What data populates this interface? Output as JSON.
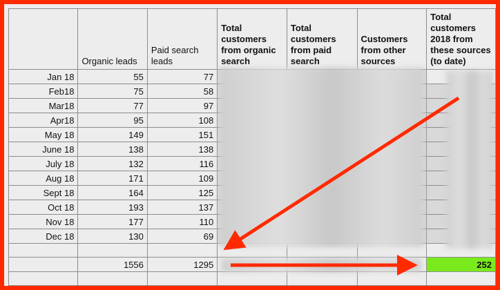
{
  "headers": {
    "label": "",
    "organic_leads": "Organic leads",
    "paid_search_leads": "Paid search leads",
    "total_organic": "Total customers from organic search",
    "total_paid": "Total customers from paid search",
    "other_sources": "Customers from other sources",
    "total_2018": "Total customers 2018 from these sources (to date)"
  },
  "rows": [
    {
      "month": "Jan 18",
      "organic": "55",
      "paid": "77"
    },
    {
      "month": "Feb18",
      "organic": "75",
      "paid": "58"
    },
    {
      "month": "Mar18",
      "organic": "77",
      "paid": "97"
    },
    {
      "month": "Apr18",
      "organic": "95",
      "paid": "108"
    },
    {
      "month": "May 18",
      "organic": "149",
      "paid": "151"
    },
    {
      "month": "June 18",
      "organic": "138",
      "paid": "138"
    },
    {
      "month": "July 18",
      "organic": "132",
      "paid": "116"
    },
    {
      "month": "Aug 18",
      "organic": "171",
      "paid": "109"
    },
    {
      "month": "Sept 18",
      "organic": "164",
      "paid": "125"
    },
    {
      "month": "Oct 18",
      "organic": "193",
      "paid": "137"
    },
    {
      "month": "Nov 18",
      "organic": "177",
      "paid": "110"
    },
    {
      "month": "Dec 18",
      "organic": "130",
      "paid": "69"
    }
  ],
  "totals": {
    "organic": "1556",
    "paid": "1295",
    "total_2018": "252"
  },
  "colors": {
    "border": "#ff2a00",
    "arrow": "#ff2a00",
    "highlight": "#7bea1c"
  }
}
